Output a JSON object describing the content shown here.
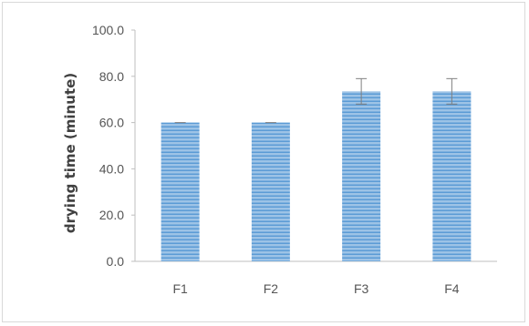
{
  "chart_data": {
    "type": "bar",
    "categories": [
      "F1",
      "F2",
      "F3",
      "F4"
    ],
    "values": [
      60.0,
      60.0,
      73.5,
      73.5
    ],
    "error": [
      0.0,
      0.0,
      5.5,
      5.5
    ],
    "ylabel": "drying time (minute)",
    "ylim": [
      0,
      100
    ],
    "yticks": [
      "0.0",
      "20.0",
      "40.0",
      "60.0",
      "80.0",
      "100.0"
    ],
    "grid": false,
    "legend": "none",
    "bar_color": "#5b9bd5",
    "bar_stripe_color": "#9dc3e6"
  }
}
